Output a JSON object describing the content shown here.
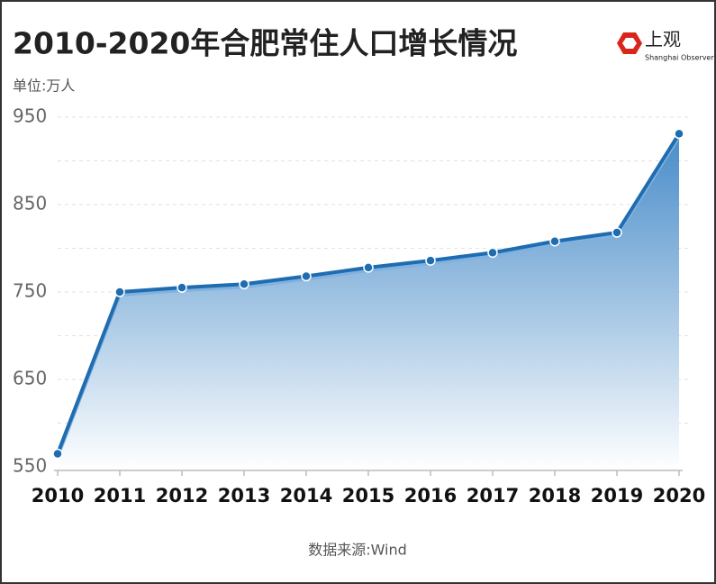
{
  "chart_data": {
    "type": "line",
    "title": "2010-2020年合肥常住人口增长情况",
    "unit": "单位:万人",
    "source": "数据来源:Wind",
    "brand": "上观",
    "brand_sub": "Shanghai Observer",
    "categories": [
      "2010",
      "2011",
      "2012",
      "2013",
      "2014",
      "2015",
      "2016",
      "2017",
      "2018",
      "2019",
      "2020"
    ],
    "values": [
      565,
      750,
      755,
      759,
      768,
      778,
      786,
      795,
      808,
      818,
      931
    ],
    "color": "#1f6cb0",
    "ylim": [
      550,
      950
    ],
    "yticks": [
      550,
      650,
      750,
      850,
      950
    ],
    "minor_yticks": [
      600,
      700,
      800,
      900
    ],
    "grid": true
  }
}
